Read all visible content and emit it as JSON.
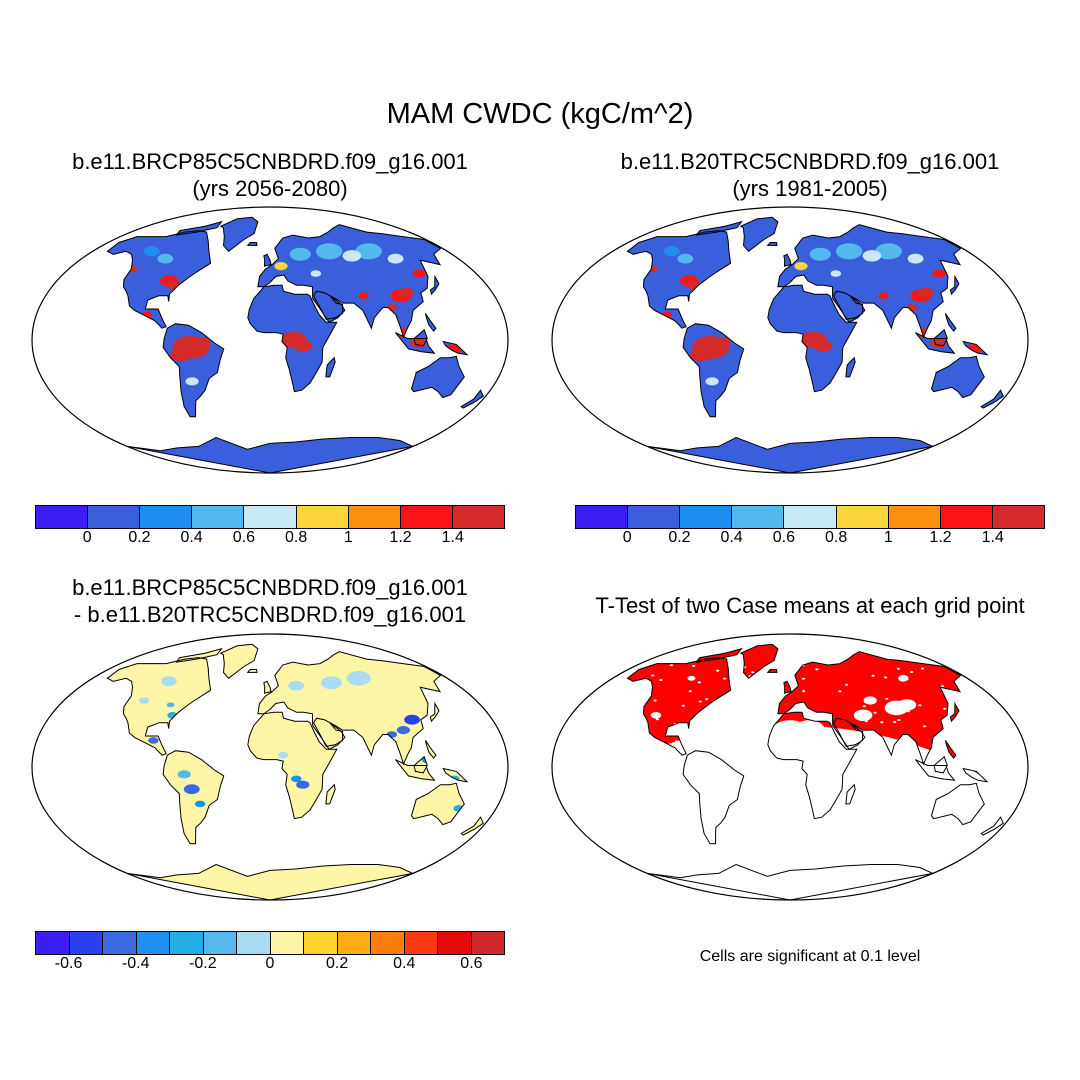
{
  "figure": {
    "title": "MAM CWDC (kgC/m^2)"
  },
  "panels": [
    {
      "id": "rcp85",
      "title_line1": "b.e11.BRCP85C5CNBDRD.f09_g16.001",
      "title_line2": "(yrs 2056-2080)"
    },
    {
      "id": "hist",
      "title_line1": "b.e11.B20TRC5CNBDRD.f09_g16.001",
      "title_line2": "(yrs 1981-2005)"
    },
    {
      "id": "diff",
      "title_line1": "b.e11.BRCP85C5CNBDRD.f09_g16.001",
      "title_line2": "- b.e11.B20TRC5CNBDRD.f09_g16.001"
    },
    {
      "id": "ttest",
      "title_line1": "T-Test of two Case means at each grid point",
      "title_line2": ""
    }
  ],
  "colorbars": {
    "absolute": {
      "colors": [
        "#3b1ff2",
        "#3a5fdc",
        "#1e8ff0",
        "#52b8ee",
        "#c8e8f6",
        "#fcd53a",
        "#fb8f0e",
        "#fb1414",
        "#d52a2a"
      ],
      "labels": [
        "0",
        "0.2",
        "0.4",
        "0.6",
        "0.8",
        "1",
        "1.2",
        "1.4"
      ]
    },
    "difference": {
      "colors": [
        "#3b1ff2",
        "#2840f0",
        "#3a6ae0",
        "#1f8ff0",
        "#22aee6",
        "#55b9ee",
        "#a9dcf3",
        "#fdf6a6",
        "#fdd12e",
        "#fdac16",
        "#fb7d0c",
        "#fb3a14",
        "#e60b0b",
        "#cf2828"
      ],
      "labels": [
        "-0.6",
        "-0.4",
        "-0.2",
        "0",
        "0.2",
        "0.4",
        "0.6"
      ]
    }
  },
  "ttest_note": "Cells are significant at 0.1 level",
  "map_colors": {
    "ocean": "#ffffff",
    "land_base": "#3a5fdc",
    "diff_base": "#fdf6a6",
    "significant": "#ff0000"
  }
}
